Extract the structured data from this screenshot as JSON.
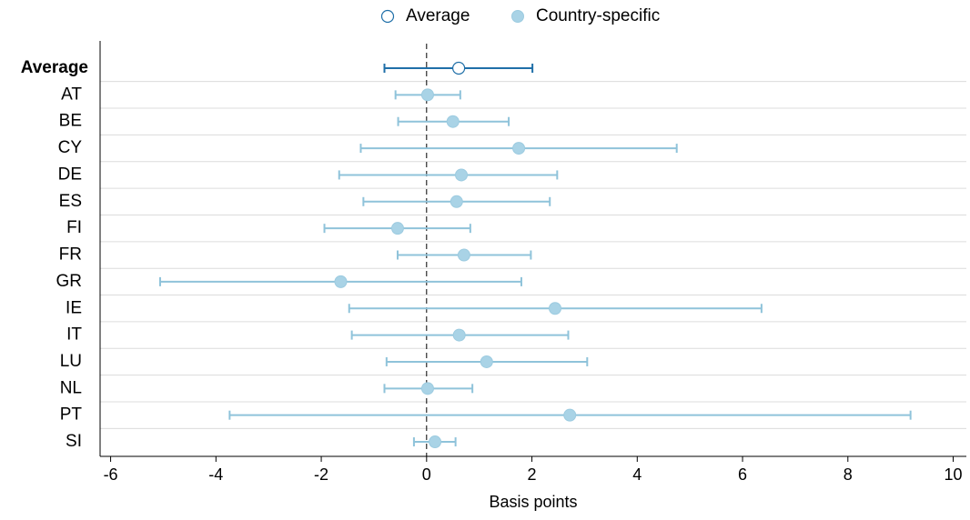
{
  "chart_data": {
    "type": "errorbar",
    "x_label": "Basis points",
    "categories": [
      "Average",
      "AT",
      "BE",
      "CY",
      "DE",
      "ES",
      "FI",
      "FR",
      "GR",
      "IE",
      "IT",
      "LU",
      "NL",
      "PT",
      "SI"
    ],
    "xlim": [
      -6.2,
      10.25
    ],
    "xticks": [
      -6,
      -4,
      -2,
      0,
      2,
      4,
      6,
      8,
      10
    ],
    "series": [
      {
        "name": "Average",
        "color": "#1f6fa8",
        "marker": "hollow",
        "values": [
          0.61,
          null,
          null,
          null,
          null,
          null,
          null,
          null,
          null,
          null,
          null,
          null,
          null,
          null,
          null
        ],
        "low": [
          -0.8,
          null,
          null,
          null,
          null,
          null,
          null,
          null,
          null,
          null,
          null,
          null,
          null,
          null,
          null
        ],
        "high": [
          2.01,
          null,
          null,
          null,
          null,
          null,
          null,
          null,
          null,
          null,
          null,
          null,
          null,
          null,
          null
        ]
      },
      {
        "name": "Country-specific",
        "color": "#a9d3e6",
        "marker": "filled",
        "values": [
          null,
          0.02,
          0.5,
          1.75,
          0.66,
          0.57,
          -0.55,
          0.71,
          -1.63,
          2.44,
          0.62,
          1.14,
          0.02,
          2.72,
          0.16
        ],
        "low": [
          null,
          -0.59,
          -0.54,
          -1.25,
          -1.66,
          -1.2,
          -1.94,
          -0.55,
          -5.06,
          -1.47,
          -1.42,
          -0.76,
          -0.8,
          -3.74,
          -0.24
        ],
        "high": [
          null,
          0.64,
          1.56,
          4.75,
          2.48,
          2.34,
          0.83,
          1.98,
          1.8,
          6.36,
          2.69,
          3.05,
          0.87,
          9.19,
          0.55
        ]
      }
    ],
    "reference_line": 0,
    "grid": true
  }
}
